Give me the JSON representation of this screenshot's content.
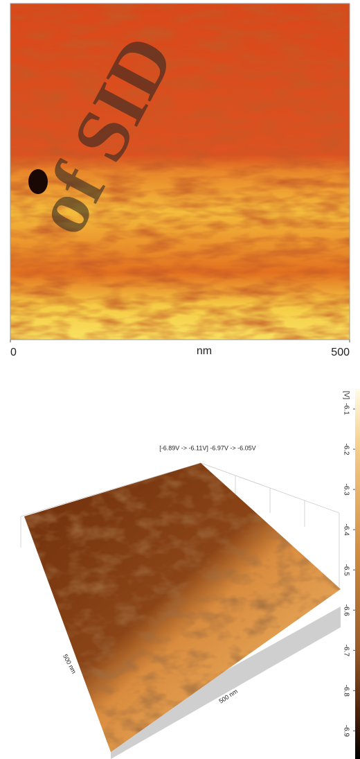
{
  "watermark": "of SID",
  "chart_data": [
    {
      "type": "heatmap",
      "xlabel": "nm",
      "xlim": [
        0,
        500
      ],
      "xticks": [
        0,
        500
      ]
    },
    {
      "type": "surface3d",
      "title": "[-6.89V  ->  -6.11V] -6.97V  ->  -6.05V",
      "x_label": "500 nm",
      "y_label": "500 nm",
      "colorbar_label": "[V]",
      "clim": [
        -6.05,
        -6.97
      ],
      "colorbar_ticks": [
        -6.1,
        -6.2,
        -6.3,
        -6.4,
        -6.5,
        -6.6,
        -6.7,
        -6.8,
        -6.9
      ]
    }
  ]
}
